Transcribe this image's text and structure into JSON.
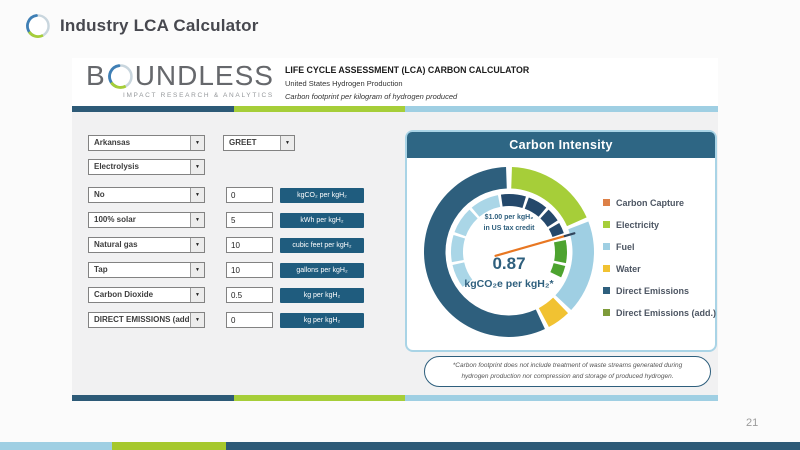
{
  "page": {
    "title": "Industry LCA Calculator",
    "page_number": "21"
  },
  "brand": {
    "name_b": "B",
    "name_rest": "UNDLESS",
    "tagline": "IMPACT RESEARCH & ANALYTICS"
  },
  "calculator": {
    "title": "LIFE CYCLE ASSESSMENT (LCA) CARBON CALCULATOR",
    "subtitle": "United States Hydrogen Production",
    "description": "Carbon footprint per kilogram of hydrogen produced",
    "region_select": "Arkansas",
    "model_select": "GREET",
    "process_select": "Electrolysis",
    "rows": [
      {
        "select": "No",
        "value": "0",
        "unit": "kgCO₂ per kgH₂"
      },
      {
        "select": "100% solar",
        "value": "5",
        "unit": "kWh per kgH₂"
      },
      {
        "select": "Natural gas",
        "value": "10",
        "unit": "cubic feet per kgH₂"
      },
      {
        "select": "Tap",
        "value": "10",
        "unit": "gallons per kgH₂"
      },
      {
        "select": "Carbon Dioxide",
        "value": "0.5",
        "unit": "kg per kgH₂"
      },
      {
        "select": "DIRECT EMISSIONS (add.)",
        "value": "0",
        "unit": "kg per kgH₂"
      }
    ],
    "footnote": "*Carbon footprint does not include treatment of waste streams generated during hydrogen production nor compression and storage of produced hydrogen."
  },
  "chart_data": {
    "type": "donut",
    "title": "Carbon Intensity",
    "center": {
      "annotation_line1": "$1.00 per kgH₂",
      "annotation_line2": "in US tax credit",
      "value": "0.87",
      "unit": "kgCO₂e per kgH₂*"
    },
    "legend_position": "right",
    "legend": [
      {
        "label": "Carbon Capture",
        "color": "#dd8047"
      },
      {
        "label": "Electricity",
        "color": "#a6ce39"
      },
      {
        "label": "Fuel",
        "color": "#9fcfe3"
      },
      {
        "label": "Water",
        "color": "#f1c232"
      },
      {
        "label": "Direct Emissions",
        "color": "#2e5f7d"
      },
      {
        "label": "Direct Emissions (add.)",
        "color": "#7e9b3a"
      }
    ],
    "outer_ring": [
      {
        "label": "Electricity",
        "color": "#a6ce39",
        "start_deg": 2,
        "end_deg": 66
      },
      {
        "label": "Fuel",
        "color": "#9fcfe3",
        "start_deg": 69,
        "end_deg": 133
      },
      {
        "label": "Water",
        "color": "#f1c232",
        "start_deg": 136,
        "end_deg": 152
      },
      {
        "label": "Direct Emissions",
        "color": "#2e5f7d",
        "start_deg": 155,
        "end_deg": 358
      }
    ],
    "gauge_ring": [
      {
        "color": "#aad6e7",
        "start_deg": 233,
        "end_deg": 257
      },
      {
        "color": "#aad6e7",
        "start_deg": 260,
        "end_deg": 287
      },
      {
        "color": "#aad6e7",
        "start_deg": 290,
        "end_deg": 317
      },
      {
        "color": "#aad6e7",
        "start_deg": 320,
        "end_deg": 349
      },
      {
        "color": "#24486b",
        "start_deg": 352,
        "end_deg": 377
      },
      {
        "color": "#24486b",
        "start_deg": 380,
        "end_deg": 400
      },
      {
        "color": "#24486b",
        "start_deg": 403,
        "end_deg": 417
      },
      {
        "color": "#24486b",
        "start_deg": 420,
        "end_deg": 431
      },
      {
        "color": "#4da32f",
        "start_deg": 438,
        "end_deg": 461
      },
      {
        "color": "#4da32f",
        "start_deg": 464,
        "end_deg": 476
      }
    ],
    "needle_deg": 74,
    "needle_color": "#e87722",
    "needle_tip_color": "#31455c"
  },
  "bars": {
    "card_top": [
      {
        "color": "#2d5a77",
        "pct": 25
      },
      {
        "color": "#a6ce39",
        "pct": 26.5
      },
      {
        "color": "#9fcfe3",
        "pct": 48.5
      }
    ],
    "card_bottom": [
      {
        "color": "#2d5a77",
        "pct": 25
      },
      {
        "color": "#a6ce39",
        "pct": 26.5
      },
      {
        "color": "#9fcfe3",
        "pct": 48.5
      }
    ],
    "slide_footer": [
      {
        "color": "#9fcfe3",
        "pct": 14
      },
      {
        "color": "#a6c82c",
        "pct": 14.2
      },
      {
        "color": "#2d5a77",
        "pct": 71.8
      }
    ]
  },
  "colors": {
    "navy": "#2e5f7d",
    "panel_header": "#2e6684",
    "chip": "#1f5c7e",
    "lime": "#a6ce39",
    "light_blue": "#9fcfe3",
    "yellow": "#f1c232",
    "orange": "#dd8047",
    "olive": "#7e9b3a",
    "needle": "#e87722"
  }
}
